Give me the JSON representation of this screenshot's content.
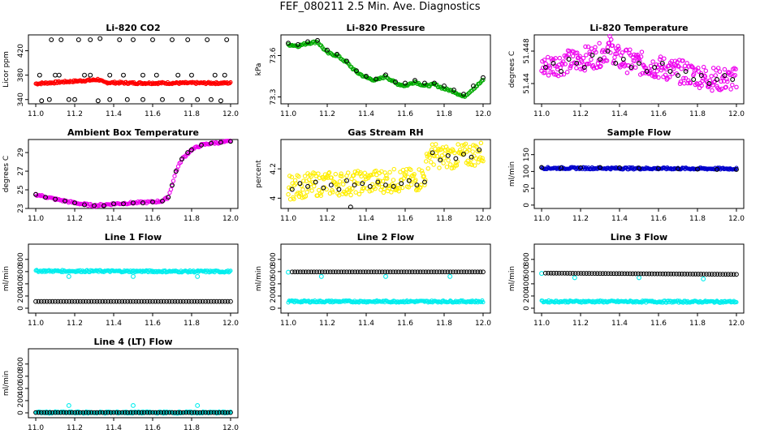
{
  "page": {
    "title": "FEF_080211  2.5 Min. Ave. Diagnostics"
  },
  "chart_data": [
    {
      "type": "scatter",
      "title": "Li-820 CO2",
      "ylabel": "Licor ppm",
      "xlim": [
        11.0,
        12.0
      ],
      "ylim": [
        333,
        446
      ],
      "xticks": [
        11.0,
        11.2,
        11.4,
        11.6,
        11.8,
        12.0
      ],
      "yticks": [
        340,
        380,
        420
      ],
      "series": [
        {
          "color": "#ff0000",
          "style": "band",
          "x": [
            11.0,
            11.1,
            11.2,
            11.3,
            11.32,
            11.35,
            11.5,
            11.7,
            11.9,
            12.0
          ],
          "values": [
            366,
            368,
            370,
            372,
            373,
            368,
            367,
            367,
            367,
            367
          ]
        },
        {
          "color": "#000000",
          "style": "points",
          "x": [
            11.03,
            11.08,
            11.1,
            11.13,
            11.17,
            11.22,
            11.25,
            11.28,
            11.32,
            11.33,
            11.38,
            11.43,
            11.47,
            11.5,
            11.55,
            11.6,
            11.65,
            11.7,
            11.73,
            11.78,
            11.83,
            11.88,
            11.92,
            11.95,
            11.98,
            11.02,
            11.12,
            11.28,
            11.45,
            11.62,
            11.8,
            11.97,
            11.07,
            11.2,
            11.38,
            11.55,
            11.75,
            11.9
          ],
          "values": [
            338,
            438,
            380,
            438,
            340,
            438,
            380,
            438,
            338,
            440,
            380,
            438,
            340,
            438,
            380,
            438,
            340,
            438,
            380,
            438,
            340,
            438,
            380,
            338,
            438,
            380,
            380,
            380,
            380,
            380,
            380,
            380,
            340,
            340,
            340,
            340,
            340,
            340
          ]
        }
      ]
    },
    {
      "type": "scatter",
      "title": "Li-820 Pressure",
      "ylabel": "kPa",
      "xlim": [
        11.0,
        12.0
      ],
      "ylim": [
        73.25,
        73.75
      ],
      "xticks": [
        11.0,
        11.2,
        11.4,
        11.6,
        11.8,
        12.0
      ],
      "yticks": [
        73.3,
        73.6
      ],
      "series": [
        {
          "color": "#00aa00",
          "style": "line",
          "x": [
            11.0,
            11.05,
            11.1,
            11.15,
            11.2,
            11.25,
            11.3,
            11.35,
            11.4,
            11.45,
            11.5,
            11.55,
            11.6,
            11.65,
            11.7,
            11.75,
            11.8,
            11.85,
            11.9,
            11.95,
            12.0
          ],
          "values": [
            73.68,
            73.67,
            73.69,
            73.7,
            73.62,
            73.6,
            73.55,
            73.48,
            73.44,
            73.42,
            73.45,
            73.4,
            73.38,
            73.41,
            73.38,
            73.39,
            73.36,
            73.34,
            73.3,
            73.36,
            73.42
          ]
        },
        {
          "color": "#000000",
          "style": "points",
          "x": [
            11.0,
            11.05,
            11.1,
            11.15,
            11.2,
            11.25,
            11.3,
            11.35,
            11.4,
            11.45,
            11.5,
            11.55,
            11.6,
            11.65,
            11.7,
            11.75,
            11.8,
            11.85,
            11.9,
            11.95,
            12.0
          ],
          "values": [
            73.69,
            73.68,
            73.7,
            73.71,
            73.64,
            73.61,
            73.56,
            73.49,
            73.45,
            73.43,
            73.46,
            73.41,
            73.4,
            73.42,
            73.4,
            73.4,
            73.38,
            73.35,
            73.32,
            73.38,
            73.44
          ]
        }
      ]
    },
    {
      "type": "scatter",
      "title": "Li-820 Temperature",
      "ylabel": "degrees C",
      "xlim": [
        11.0,
        12.0
      ],
      "ylim": [
        51.435,
        51.452
      ],
      "xticks": [
        11.0,
        11.2,
        11.4,
        11.6,
        11.8,
        12.0
      ],
      "yticks": [
        51.44,
        51.448
      ],
      "series": [
        {
          "color": "#ee00ee",
          "style": "cloud",
          "x": [
            11.0,
            11.1,
            11.2,
            11.3,
            11.35,
            11.4,
            11.5,
            11.6,
            11.7,
            11.8,
            11.9,
            12.0
          ],
          "values": [
            51.444,
            51.445,
            51.446,
            51.447,
            51.449,
            51.446,
            51.445,
            51.444,
            51.443,
            51.442,
            51.441,
            51.441
          ]
        },
        {
          "color": "#000000",
          "style": "points",
          "x": [
            11.02,
            11.06,
            11.1,
            11.14,
            11.18,
            11.22,
            11.26,
            11.3,
            11.34,
            11.38,
            11.42,
            11.46,
            11.5,
            11.54,
            11.58,
            11.62,
            11.66,
            11.7,
            11.74,
            11.78,
            11.82,
            11.86,
            11.9,
            11.94,
            11.98
          ],
          "values": [
            51.444,
            51.445,
            51.443,
            51.446,
            51.445,
            51.444,
            51.447,
            51.446,
            51.448,
            51.445,
            51.446,
            51.444,
            51.445,
            51.443,
            51.444,
            51.445,
            51.443,
            51.442,
            51.443,
            51.441,
            51.442,
            51.44,
            51.441,
            51.442,
            51.441
          ]
        }
      ]
    },
    {
      "type": "scatter",
      "title": "Ambient Box Temperature",
      "ylabel": "degrees C",
      "xlim": [
        11.0,
        12.0
      ],
      "ylim": [
        23,
        30.4
      ],
      "xticks": [
        11.0,
        11.2,
        11.4,
        11.6,
        11.8,
        12.0
      ],
      "yticks": [
        23,
        25,
        27,
        29
      ],
      "series": [
        {
          "color": "#ee00ee",
          "style": "line",
          "x": [
            11.0,
            11.1,
            11.2,
            11.3,
            11.4,
            11.5,
            11.6,
            11.65,
            11.68,
            11.7,
            11.72,
            11.75,
            11.8,
            11.85,
            11.9,
            11.95,
            12.0
          ],
          "values": [
            24.5,
            24.0,
            23.6,
            23.3,
            23.5,
            23.6,
            23.7,
            23.8,
            24.2,
            25.5,
            27.0,
            28.3,
            29.3,
            29.8,
            30.0,
            30.1,
            30.2
          ]
        },
        {
          "color": "#000000",
          "style": "points",
          "x": [
            11.0,
            11.05,
            11.1,
            11.15,
            11.2,
            11.25,
            11.3,
            11.35,
            11.4,
            11.45,
            11.5,
            11.55,
            11.6,
            11.65,
            11.68,
            11.7,
            11.72,
            11.75,
            11.78,
            11.8,
            11.85,
            11.9,
            11.95,
            12.0
          ],
          "values": [
            24.5,
            24.2,
            24.0,
            23.8,
            23.6,
            23.4,
            23.3,
            23.3,
            23.5,
            23.5,
            23.6,
            23.6,
            23.7,
            23.8,
            24.2,
            25.5,
            27.0,
            28.3,
            29.0,
            29.3,
            29.8,
            30.0,
            30.1,
            30.2
          ]
        }
      ]
    },
    {
      "type": "scatter",
      "title": "Gas Stream RH",
      "ylabel": "percent",
      "xlim": [
        11.0,
        12.0
      ],
      "ylim": [
        3.93,
        4.4
      ],
      "xticks": [
        11.0,
        11.2,
        11.4,
        11.6,
        11.8,
        12.0
      ],
      "yticks": [
        4.0,
        4.2
      ],
      "series": [
        {
          "color": "#ffee00",
          "style": "cloud",
          "x": [
            11.0,
            11.1,
            11.2,
            11.3,
            11.4,
            11.5,
            11.6,
            11.65,
            11.7,
            11.72,
            11.8,
            11.9,
            12.0
          ],
          "values": [
            4.07,
            4.09,
            4.1,
            4.1,
            4.11,
            4.12,
            4.12,
            4.12,
            4.15,
            4.3,
            4.28,
            4.29,
            4.31
          ]
        },
        {
          "color": "#000000",
          "style": "points",
          "x": [
            11.02,
            11.06,
            11.1,
            11.14,
            11.18,
            11.22,
            11.26,
            11.3,
            11.32,
            11.34,
            11.38,
            11.42,
            11.46,
            11.5,
            11.54,
            11.58,
            11.62,
            11.66,
            11.7,
            11.74,
            11.78,
            11.82,
            11.86,
            11.9,
            11.94,
            11.98
          ],
          "values": [
            4.06,
            4.1,
            4.08,
            4.11,
            4.07,
            4.09,
            4.06,
            4.12,
            3.94,
            4.09,
            4.1,
            4.08,
            4.11,
            4.09,
            4.08,
            4.1,
            4.12,
            4.09,
            4.11,
            4.31,
            4.26,
            4.29,
            4.27,
            4.3,
            4.28,
            4.33
          ]
        }
      ]
    },
    {
      "type": "scatter",
      "title": "Sample Flow",
      "ylabel": "ml/min",
      "xlim": [
        11.0,
        12.0
      ],
      "ylim": [
        -10,
        195
      ],
      "xticks": [
        11.0,
        11.2,
        11.4,
        11.6,
        11.8,
        12.0
      ],
      "yticks": [
        0,
        50,
        100,
        150
      ],
      "series": [
        {
          "color": "#0000cc",
          "style": "band",
          "x": [
            11.0,
            12.0
          ],
          "values": [
            110,
            108
          ]
        },
        {
          "color": "#000000",
          "style": "points",
          "x": [
            11.0,
            11.1,
            11.2,
            11.3,
            11.4,
            11.5,
            11.6,
            11.7,
            11.8,
            11.9,
            12.0
          ],
          "values": [
            112,
            110,
            111,
            112,
            111,
            110,
            109,
            108,
            107,
            106,
            106
          ]
        }
      ]
    },
    {
      "type": "scatter",
      "title": "Line 1 Flow",
      "ylabel": "ml/min",
      "xlim": [
        11.0,
        12.0
      ],
      "ylim": [
        -80,
        1050
      ],
      "xticks": [
        11.0,
        11.2,
        11.4,
        11.6,
        11.8,
        12.0
      ],
      "yticks": [
        0,
        200,
        400,
        600,
        800
      ],
      "series": [
        {
          "color": "#00eeee",
          "style": "band",
          "x": [
            11.0,
            12.0
          ],
          "values": [
            610,
            600
          ]
        },
        {
          "color": "#00eeee",
          "style": "points",
          "x": [
            11.17,
            11.5,
            11.83
          ],
          "values": [
            520,
            520,
            520
          ]
        },
        {
          "color": "#000000",
          "style": "dense",
          "x": [
            11.0,
            12.0
          ],
          "values": [
            110,
            110
          ]
        }
      ]
    },
    {
      "type": "scatter",
      "title": "Line 2 Flow",
      "ylabel": "ml/min",
      "xlim": [
        11.0,
        12.0
      ],
      "ylim": [
        -80,
        1050
      ],
      "xticks": [
        11.0,
        11.2,
        11.4,
        11.6,
        11.8,
        12.0
      ],
      "yticks": [
        0,
        200,
        400,
        600,
        800
      ],
      "series": [
        {
          "color": "#00eeee",
          "style": "band",
          "x": [
            11.0,
            12.0
          ],
          "values": [
            110,
            110
          ]
        },
        {
          "color": "#00eeee",
          "style": "points",
          "x": [
            11.0,
            11.17,
            11.5,
            11.83
          ],
          "values": [
            590,
            520,
            520,
            520
          ]
        },
        {
          "color": "#000000",
          "style": "dense",
          "x": [
            11.02,
            12.0
          ],
          "values": [
            595,
            595
          ]
        }
      ]
    },
    {
      "type": "scatter",
      "title": "Line 3 Flow",
      "ylabel": "ml/min",
      "xlim": [
        11.0,
        12.0
      ],
      "ylim": [
        -80,
        1050
      ],
      "xticks": [
        11.0,
        11.2,
        11.4,
        11.6,
        11.8,
        12.0
      ],
      "yticks": [
        0,
        200,
        400,
        600,
        800
      ],
      "series": [
        {
          "color": "#00eeee",
          "style": "band",
          "x": [
            11.0,
            12.0
          ],
          "values": [
            110,
            105
          ]
        },
        {
          "color": "#00eeee",
          "style": "points",
          "x": [
            11.0,
            11.17,
            11.5,
            11.83
          ],
          "values": [
            570,
            500,
            500,
            480
          ]
        },
        {
          "color": "#000000",
          "style": "dense",
          "x": [
            11.02,
            12.0
          ],
          "values": [
            575,
            555
          ]
        }
      ]
    },
    {
      "type": "scatter",
      "title": "Line 4 (LT) Flow",
      "ylabel": "ml/min",
      "xlim": [
        11.0,
        12.0
      ],
      "ylim": [
        -80,
        1050
      ],
      "xticks": [
        11.0,
        11.2,
        11.4,
        11.6,
        11.8,
        12.0
      ],
      "yticks": [
        0,
        200,
        400,
        600,
        800
      ],
      "series": [
        {
          "color": "#00eeee",
          "style": "band",
          "x": [
            11.0,
            12.0
          ],
          "values": [
            5,
            5
          ]
        },
        {
          "color": "#00eeee",
          "style": "points",
          "x": [
            11.17,
            11.5,
            11.83
          ],
          "values": [
            120,
            120,
            120
          ]
        },
        {
          "color": "#000000",
          "style": "dense",
          "x": [
            11.0,
            12.0
          ],
          "values": [
            5,
            5
          ]
        }
      ]
    }
  ]
}
